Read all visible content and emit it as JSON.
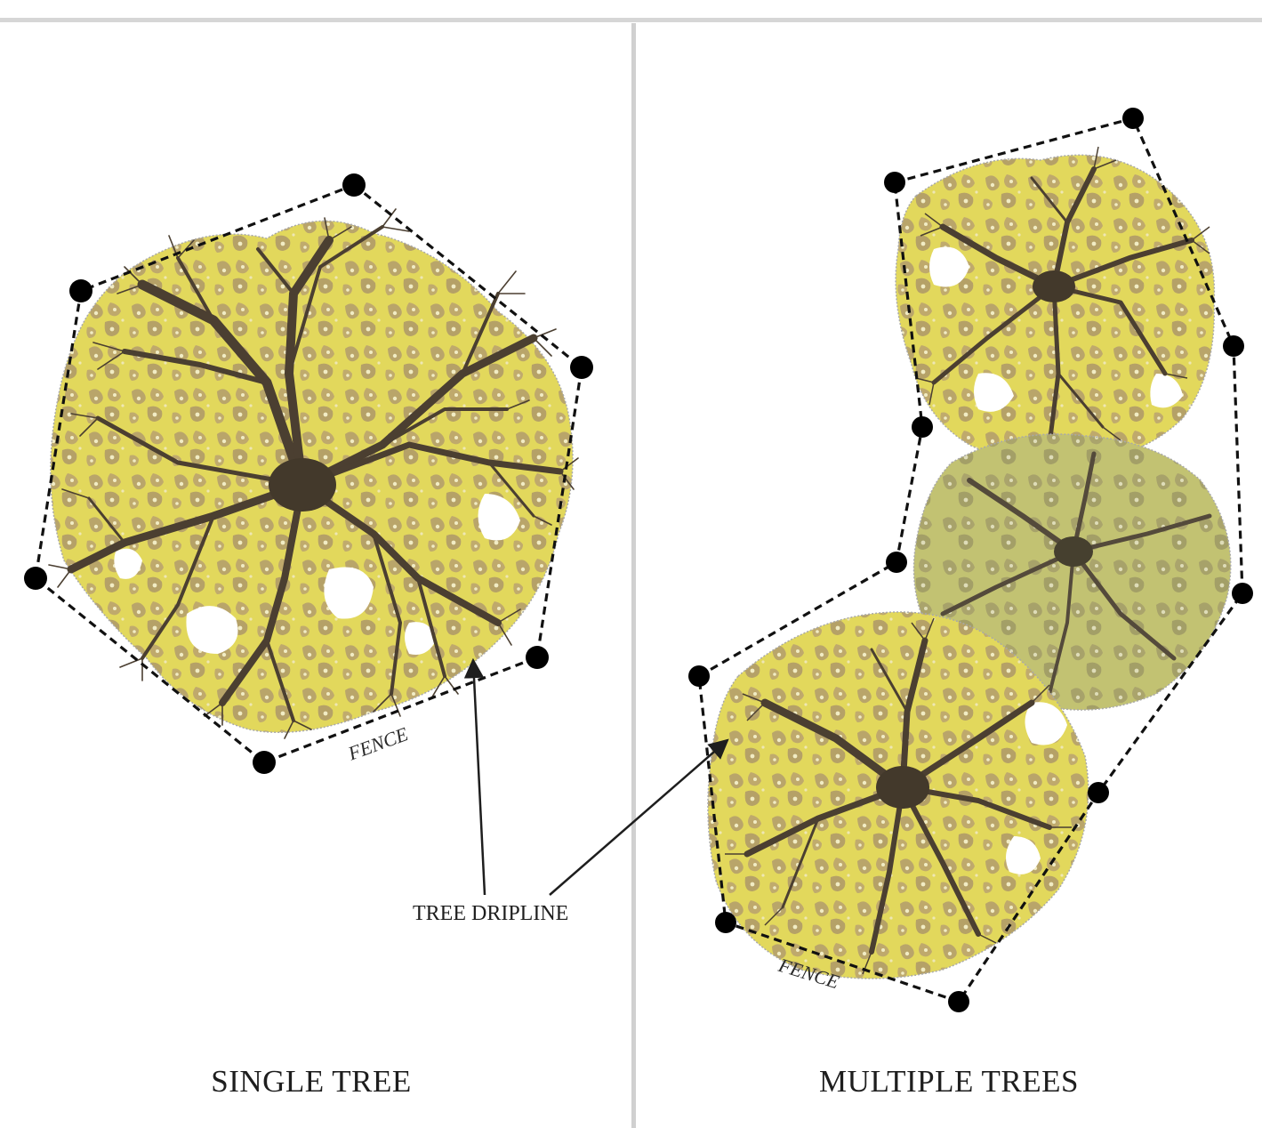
{
  "colors": {
    "canopy_yellow": "#e3d95a",
    "canopy_tan": "#b9a469",
    "canopy_olive": "#b9b868",
    "branch": "#4b3f31",
    "fence": "#111111",
    "post": "#000000"
  },
  "left_panel": {
    "title": "SINGLE TREE",
    "fence_label": "FENCE"
  },
  "right_panel": {
    "title": "MULTIPLE TREES",
    "fence_label": "FENCE"
  },
  "callout": {
    "label": "TREE DRIPLINE"
  }
}
